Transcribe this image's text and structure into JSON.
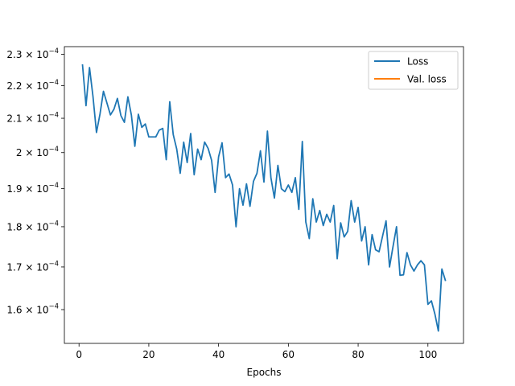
{
  "chart_data": {
    "type": "line",
    "title": "",
    "xlabel": "Epochs",
    "ylabel": "",
    "y_scale": "log",
    "xlim": [
      -4.2,
      110.2
    ],
    "ylim": [
      0.0001525,
      0.0002325
    ],
    "x_ticks": [
      0,
      20,
      40,
      60,
      80,
      100
    ],
    "y_ticks": [
      {
        "value": 0.00016,
        "mantissa": "1.6"
      },
      {
        "value": 0.00017,
        "mantissa": "1.7"
      },
      {
        "value": 0.00018,
        "mantissa": "1.8"
      },
      {
        "value": 0.00019,
        "mantissa": "1.9"
      },
      {
        "value": 0.0002,
        "mantissa": "2"
      },
      {
        "value": 0.00021,
        "mantissa": "2.1"
      },
      {
        "value": 0.00022,
        "mantissa": "2.2"
      },
      {
        "value": 0.00023,
        "mantissa": "2.3"
      }
    ],
    "y_tick_base": "10",
    "y_tick_exponent": "−4",
    "x_tick_labels": [
      "0",
      "20",
      "40",
      "60",
      "80",
      "100"
    ],
    "legend_position": "upper right",
    "grid": false,
    "series": [
      {
        "name": "Loss",
        "color": "#1f77b4",
        "x": [
          1,
          2,
          3,
          4,
          5,
          6,
          7,
          8,
          9,
          10,
          11,
          12,
          13,
          14,
          15,
          16,
          17,
          18,
          19,
          20,
          21,
          22,
          23,
          24,
          25,
          26,
          27,
          28,
          29,
          30,
          31,
          32,
          33,
          34,
          35,
          36,
          37,
          38,
          39,
          40,
          41,
          42,
          43,
          44,
          45,
          46,
          47,
          48,
          49,
          50,
          51,
          52,
          53,
          54,
          55,
          56,
          57,
          58,
          59,
          60,
          61,
          62,
          63,
          64,
          65,
          66,
          67,
          68,
          69,
          70,
          71,
          72,
          73,
          74,
          75,
          76,
          77,
          78,
          79,
          80,
          81,
          82,
          83,
          84,
          85,
          86,
          87,
          88,
          89,
          90,
          91,
          92,
          93,
          94,
          95,
          96,
          97,
          98,
          99,
          100,
          101,
          102,
          103,
          104,
          105
        ],
        "y": [
          0.0002265,
          0.0002138,
          0.0002257,
          0.0002166,
          0.0002058,
          0.0002112,
          0.0002182,
          0.0002146,
          0.000211,
          0.0002127,
          0.000216,
          0.0002108,
          0.0002088,
          0.0002165,
          0.000211,
          0.0002018,
          0.0002112,
          0.0002073,
          0.0002083,
          0.0002045,
          0.0002045,
          0.0002045,
          0.0002065,
          0.000207,
          0.000198,
          0.000215,
          0.0002052,
          0.000201,
          0.0001942,
          0.000203,
          0.0001972,
          0.0002055,
          0.0001938,
          0.000201,
          0.000198,
          0.000203,
          0.0002012,
          0.0001978,
          0.000189,
          0.0001988,
          0.0002028,
          0.000193,
          0.000194,
          0.000191,
          0.00018,
          0.00019,
          0.0001856,
          0.0001913,
          0.0001853,
          0.000192,
          0.0001942,
          0.0002005,
          0.0001918,
          0.0002062,
          0.000193,
          0.0001875,
          0.0001964,
          0.00019,
          0.0001892,
          0.000191,
          0.000189,
          0.000193,
          0.0001845,
          0.0002032,
          0.0001812,
          0.000177,
          0.0001873,
          0.0001812,
          0.0001842,
          0.0001803,
          0.0001832,
          0.0001812,
          0.0001855,
          0.000172,
          0.000181,
          0.0001774,
          0.0001788,
          0.0001868,
          0.0001812,
          0.000185,
          0.0001764,
          0.00018,
          0.0001705,
          0.000178,
          0.0001742,
          0.0001737,
          0.0001776,
          0.0001815,
          0.00017,
          0.000175,
          0.00018,
          0.000168,
          0.0001681,
          0.0001735,
          0.0001705,
          0.000169,
          0.0001705,
          0.0001715,
          0.0001705,
          0.0001612,
          0.000162,
          0.000159,
          0.0001552,
          0.0001695,
          0.0001668
        ]
      },
      {
        "name": "Val. loss",
        "color": "#ff7f0e",
        "x": [],
        "y": []
      }
    ]
  }
}
